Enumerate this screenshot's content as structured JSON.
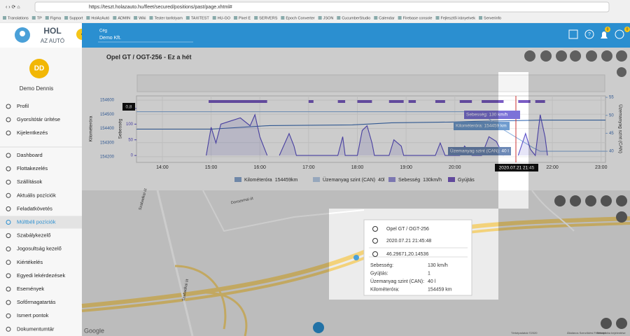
{
  "browser": {
    "url": "https://teszt.holazauto.hu/fleet/secured/positions/past/page.xhtml#",
    "bookmarks": [
      "Translations",
      "TP",
      "Figma",
      "Support",
      "HolAzAutó",
      "ADMIN",
      "Wiki",
      "Tester tanfolyam",
      "TAXITEST",
      "HU-GO",
      "Pixel E",
      "SERVERS",
      "Epoch Converter",
      "JSON",
      "CucumberStudio",
      "Calendar",
      "Firebase console",
      "Fejlesztői irányelvek",
      "Serverinfo"
    ]
  },
  "sidebar": {
    "logo_line1": "HOL",
    "logo_line2": "AZ AUTÓ",
    "avatar": "DD",
    "user": "Demo Dennis",
    "user_menu": [
      "Profil",
      "Gyorsítótár ürítése",
      "Kijelentkezés"
    ],
    "menu": [
      "Dashboard",
      "Flottakezelés",
      "Szállítások",
      "Aktuális pozíciók",
      "Feladatkövetés",
      "Múltbéli pozíciók",
      "Szabálykezelő",
      "Jogosultság kezelő",
      "Kiértékelés",
      "Egyedi lekérdezések",
      "Események",
      "Sofőrmagatartás",
      "Ismert pontok",
      "Dokumentumtár"
    ]
  },
  "header": {
    "company_label": "Cég",
    "company": "Demo Kft.",
    "badges": [
      0,
      0
    ]
  },
  "panel": {
    "title": "Opel GT / OGT-256 - Ez a hét"
  },
  "chart_data": {
    "type": "line",
    "scale_badge": "0,8",
    "cursor_label": "2020.07.21 21:45",
    "y_title": "Kilométeróra",
    "y3_title": "Sebesség",
    "y2_title": "Üzemanyag szint (CAN)",
    "xlim": [
      13.47,
      23.09
    ],
    "xticks": [
      {
        "value": 14,
        "label": "14:00"
      },
      {
        "value": 15,
        "label": "15:00"
      },
      {
        "value": 16,
        "label": "16:00"
      },
      {
        "value": 17,
        "label": "17:00"
      },
      {
        "value": 18,
        "label": "18:00"
      },
      {
        "value": 19,
        "label": "19:00"
      },
      {
        "value": 20,
        "label": "20:00"
      },
      {
        "value": 22,
        "label": "22:00"
      },
      {
        "value": 23,
        "label": "23:00"
      }
    ],
    "ylim": [
      154160,
      154630
    ],
    "yticks": [
      154200,
      154300,
      154400,
      154500,
      154600
    ],
    "y3lim": [
      -22,
      190
    ],
    "y3ticks": [
      0,
      50,
      100,
      150
    ],
    "y2lim": [
      36.9,
      55.4
    ],
    "y2ticks": [
      40,
      45,
      50,
      55
    ],
    "series": [
      {
        "name": "Kilométeróra",
        "legend_value": "154459km",
        "color": "#3d6fb6",
        "axis": "y",
        "x": [
          13.47,
          15.0,
          16.2,
          17.9,
          18.7,
          19.9,
          20.4,
          21.75,
          23.09
        ],
        "values": [
          154395,
          154395,
          154420,
          154425,
          154440,
          154445,
          154450,
          154459,
          154459
        ]
      },
      {
        "name": "Üzemanyag szint (CAN)",
        "legend_value": "40l",
        "color": "#8fb3e0",
        "axis": "y2",
        "x": [
          13.47,
          20.5,
          21.0,
          21.6,
          21.75,
          23.09
        ],
        "values": [
          51,
          51,
          46,
          41,
          40,
          40
        ]
      },
      {
        "name": "Sebesség",
        "legend_value": "130km/h",
        "color": "#5a4fc8",
        "axis": "y3",
        "x": [
          14.9,
          15.0,
          15.1,
          15.2,
          15.4,
          15.6,
          15.8,
          15.9,
          16.0,
          16.1,
          16.15,
          16.2,
          16.4,
          16.6,
          16.7,
          16.75,
          17.6,
          17.7,
          17.75,
          18.0,
          18.1,
          18.2,
          18.3,
          18.35,
          18.65,
          18.75,
          18.9,
          18.95,
          19.6,
          19.7,
          19.8,
          20.1,
          20.2,
          20.35,
          20.55,
          20.7,
          20.85,
          21.0,
          21.05,
          21.3,
          21.45,
          21.55,
          21.65,
          21.75,
          21.85,
          21.9
        ],
        "values": [
          0,
          90,
          40,
          100,
          110,
          120,
          95,
          130,
          60,
          20,
          0,
          null,
          0,
          70,
          30,
          0,
          0,
          60,
          0,
          0,
          80,
          95,
          40,
          0,
          0,
          50,
          30,
          0,
          0,
          40,
          0,
          0,
          30,
          0,
          0,
          60,
          45,
          0,
          null,
          0,
          70,
          20,
          0,
          130,
          60,
          0
        ]
      }
    ],
    "ignition": {
      "name": "Gyújtás",
      "color": "#7a5cc4",
      "intervals": [
        [
          14.95,
          16.15
        ],
        [
          17.0,
          17.1
        ],
        [
          17.6,
          17.75
        ],
        [
          18.0,
          18.3
        ],
        [
          18.65,
          18.95
        ],
        [
          19.05,
          19.2
        ],
        [
          19.6,
          19.8
        ],
        [
          20.1,
          20.35
        ],
        [
          20.55,
          21.0
        ],
        [
          21.3,
          21.55
        ],
        [
          21.65,
          21.85
        ]
      ]
    },
    "tooltips": [
      "Sebesség: 130 km/h",
      "Kilométeróra: 154459 km",
      "Üzemanyag szint (CAN): 40 l"
    ]
  },
  "map": {
    "popup": {
      "vehicle": "Opel GT / OGT-256",
      "time": "2020.07.21 21:45:48",
      "coords": "46.29671,20.14536",
      "rows": [
        [
          "Sebesség:",
          "130 km/h"
        ],
        [
          "Gyújtás:",
          "1"
        ],
        [
          "Üzemanyag szint (CAN):",
          "40 l"
        ],
        [
          "Kilométeróra:",
          "154459 km"
        ]
      ]
    },
    "street_labels": [
      "Szabadkai út",
      "Dorozsmai út",
      "Szabadkai út"
    ],
    "brand": "Google",
    "attribution": [
      "Térképadatok ©2020",
      "Általános Szerződési Feltételek",
      "Térképhiba bejelentése"
    ]
  }
}
